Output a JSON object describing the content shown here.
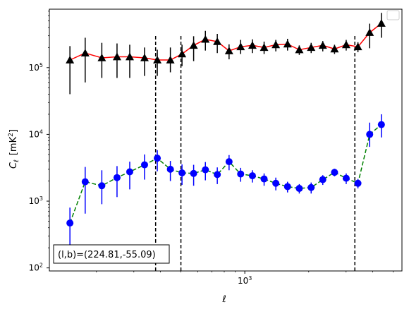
{
  "chart_data": {
    "type": "scatter",
    "xlabel": "ℓ",
    "ylabel_symbol": "C",
    "ylabel_sub": "ℓ",
    "ylabel_unit": "[mK",
    "ylabel_unit_sup": "2",
    "ylabel_unit_close": "]",
    "xscale": "log",
    "yscale": "log",
    "xlim": [
      120,
      5500
    ],
    "ylim": [
      90,
      750000
    ],
    "x_ticks": [
      {
        "value": 1000,
        "base": "10",
        "exp": "3"
      }
    ],
    "y_ticks": [
      {
        "value": 100,
        "base": "10",
        "exp": "2"
      },
      {
        "value": 1000,
        "base": "10",
        "exp": "3"
      },
      {
        "value": 10000,
        "base": "10",
        "exp": "4"
      },
      {
        "value": 100000,
        "base": "10",
        "exp": "5"
      }
    ],
    "vlines": [
      380,
      500,
      3300
    ],
    "vline_ymax": 300000,
    "annotation": "(l,b)=(224.81,-55.09)",
    "annotation_position": "bottom-left",
    "legend_position": "top-right",
    "series": [
      {
        "marker": "triangle",
        "marker_color": "#000000",
        "line_color": "#ff0000",
        "line_style": "solid",
        "errorbar_color": "#000000",
        "x": [
          150,
          177,
          212,
          250,
          287,
          337,
          387,
          446,
          506,
          574,
          652,
          742,
          843,
          956,
          1086,
          1233,
          1400,
          1590,
          1806,
          2054,
          2330,
          2647,
          3004,
          3412,
          3876,
          4400
        ],
        "y": [
          130000,
          165000,
          140000,
          145000,
          145000,
          140000,
          130000,
          130000,
          160000,
          215000,
          265000,
          245000,
          178000,
          205000,
          215000,
          200000,
          220000,
          225000,
          185000,
          200000,
          215000,
          190000,
          220000,
          205000,
          335000,
          460000
        ],
        "err_low": [
          90000,
          105000,
          70000,
          75000,
          75000,
          65000,
          55000,
          45000,
          55000,
          90000,
          85000,
          80000,
          45000,
          45000,
          50000,
          40000,
          45000,
          45000,
          30000,
          35000,
          40000,
          30000,
          40000,
          35000,
          140000,
          180000
        ],
        "err_high": [
          80000,
          115000,
          95000,
          85000,
          75000,
          60000,
          55000,
          70000,
          60000,
          80000,
          90000,
          75000,
          45000,
          55000,
          50000,
          45000,
          40000,
          45000,
          30000,
          35000,
          35000,
          30000,
          40000,
          35000,
          120000,
          200000
        ]
      },
      {
        "marker": "circle",
        "marker_color": "#0000ff",
        "line_color": "#008000",
        "line_style": "dashed",
        "errorbar_color": "#0000ff",
        "x": [
          150,
          177,
          212,
          250,
          287,
          337,
          387,
          446,
          506,
          574,
          652,
          742,
          843,
          956,
          1086,
          1233,
          1400,
          1590,
          1806,
          2054,
          2330,
          2647,
          3004,
          3412,
          3876,
          4400
        ],
        "y": [
          470,
          1950,
          1700,
          2250,
          2750,
          3500,
          4400,
          3000,
          2650,
          2600,
          2950,
          2500,
          3900,
          2550,
          2400,
          2150,
          1850,
          1650,
          1550,
          1600,
          2100,
          2700,
          2200,
          1850,
          10000,
          14000
        ],
        "err_low": [
          280,
          1300,
          800,
          1100,
          1250,
          1400,
          1600,
          1000,
          900,
          900,
          900,
          700,
          1000,
          600,
          500,
          450,
          400,
          300,
          250,
          300,
          350,
          350,
          400,
          300,
          3500,
          5000
        ],
        "err_high": [
          330,
          1300,
          1200,
          1100,
          1150,
          1500,
          1400,
          1000,
          900,
          900,
          900,
          700,
          1000,
          600,
          500,
          450,
          400,
          300,
          250,
          300,
          350,
          350,
          400,
          300,
          5000,
          6000
        ]
      }
    ]
  }
}
